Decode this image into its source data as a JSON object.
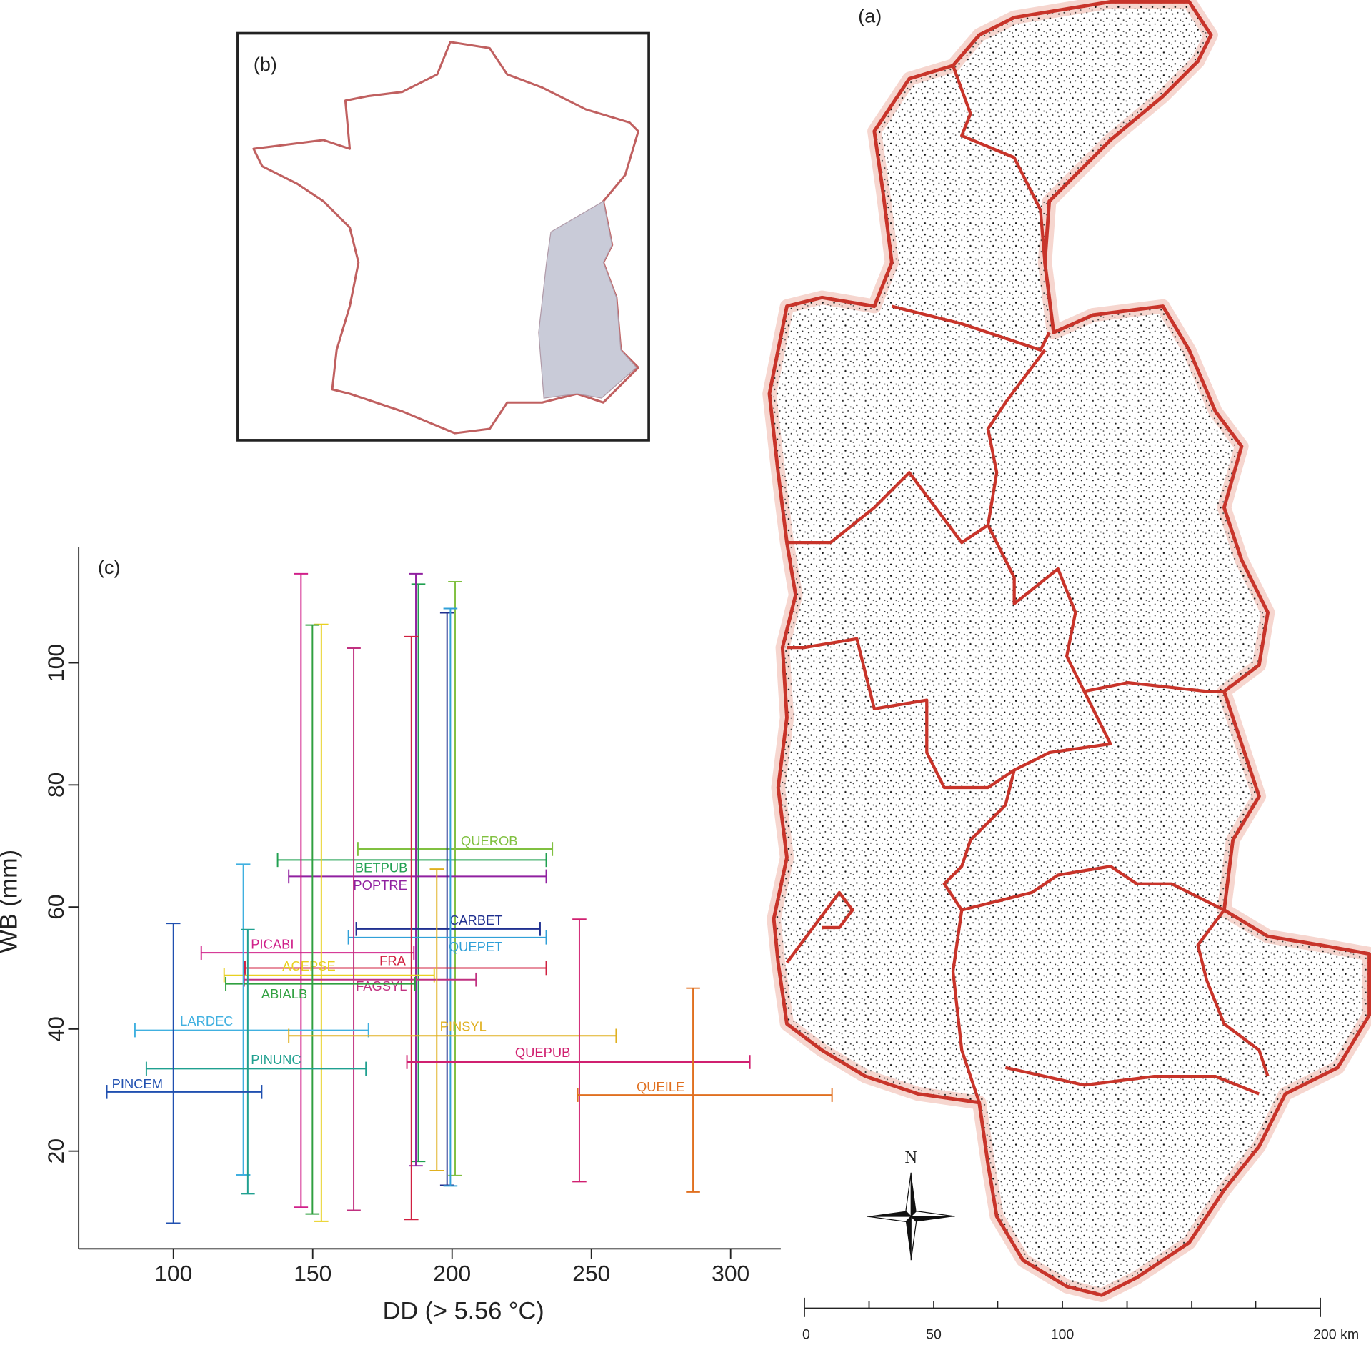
{
  "map_panel": {
    "label": "(a)",
    "north": "N",
    "scale_labels": [
      "0",
      "50",
      "100",
      "200 km"
    ]
  },
  "inset_panel": {
    "label": "(b)"
  },
  "chart_data": {
    "type": "errorbar",
    "panel_label": "(c)",
    "x_label": "DD (> 5.56 °C)",
    "y_label": "WB (mm)",
    "xlim": [
      66,
      318
    ],
    "ylim": [
      4,
      119
    ],
    "xticks": [
      100,
      150,
      200,
      250,
      300
    ],
    "yticks": [
      20,
      40,
      60,
      80,
      100
    ],
    "series": [
      {
        "name": "QUEROB",
        "color": "#80c040",
        "dd": 201.1,
        "dd_range": [
          166.2,
          236.0
        ],
        "wb": 69.5,
        "wb_range": [
          16.0,
          113.3
        ]
      },
      {
        "name": "BETPUB",
        "color": "#20a050",
        "dd": 187.9,
        "dd_range": [
          137.4,
          233.8
        ],
        "wb": 67.7,
        "wb_range": [
          18.3,
          112.9
        ]
      },
      {
        "name": "POPTRE",
        "color": "#9020a0",
        "dd": 187.0,
        "dd_range": [
          141.4,
          233.8
        ],
        "wb": 65.0,
        "wb_range": [
          17.6,
          114.6
        ]
      },
      {
        "name": "CARBET",
        "color": "#203090",
        "dd": 198.2,
        "dd_range": [
          165.6,
          231.6
        ],
        "wb": 56.4,
        "wb_range": [
          14.4,
          108.2
        ]
      },
      {
        "name": "QUEPET",
        "color": "#30a0d8",
        "dd": 199.4,
        "dd_range": [
          162.8,
          233.8
        ],
        "wb": 55.0,
        "wb_range": [
          14.3,
          108.9
        ]
      },
      {
        "name": "PICABI",
        "color": "#d0208a",
        "dd": 145.8,
        "dd_range": [
          110.0,
          186.3
        ],
        "wb": 52.5,
        "wb_range": [
          10.8,
          114.6
        ]
      },
      {
        "name": "FRA",
        "color": "#d02040",
        "dd": 185.4,
        "dd_range": [
          125.7,
          233.8
        ],
        "wb": 50.0,
        "wb_range": [
          8.8,
          104.3
        ]
      },
      {
        "name": "ACEPSE",
        "color": "#e8d020",
        "dd": 153.1,
        "dd_range": [
          118.2,
          193.6
        ],
        "wb": 48.8,
        "wb_range": [
          8.5,
          106.3
        ]
      },
      {
        "name": "FAGSYL",
        "color": "#c03080",
        "dd": 164.7,
        "dd_range": [
          125.4,
          208.6
        ],
        "wb": 48.1,
        "wb_range": [
          10.3,
          102.4
        ]
      },
      {
        "name": "ABIALB",
        "color": "#30a040",
        "dd": 149.9,
        "dd_range": [
          118.8,
          186.7
        ],
        "wb": 47.4,
        "wb_range": [
          9.7,
          106.2
        ]
      },
      {
        "name": "LARDEC",
        "color": "#40b0e0",
        "dd": 125.1,
        "dd_range": [
          86.2,
          170.0
        ],
        "wb": 39.8,
        "wb_range": [
          16.1,
          67.0
        ]
      },
      {
        "name": "PINSYL",
        "color": "#e0b020",
        "dd": 194.5,
        "dd_range": [
          141.4,
          258.9
        ],
        "wb": 38.9,
        "wb_range": [
          16.8,
          66.2
        ]
      },
      {
        "name": "QUEPUB",
        "color": "#d02070",
        "dd": 245.7,
        "dd_range": [
          183.8,
          306.9
        ],
        "wb": 34.6,
        "wb_range": [
          15.0,
          58.0
        ]
      },
      {
        "name": "PINUNC",
        "color": "#20a090",
        "dd": 126.7,
        "dd_range": [
          90.3,
          169.1
        ],
        "wb": 33.5,
        "wb_range": [
          13.0,
          56.3
        ]
      },
      {
        "name": "PINCEM",
        "color": "#2050b0",
        "dd": 100.0,
        "dd_range": [
          76.1,
          131.7
        ],
        "wb": 29.7,
        "wb_range": [
          8.2,
          57.3
        ]
      },
      {
        "name": "QUEILE",
        "color": "#e07020",
        "dd": 286.5,
        "dd_range": [
          245.1,
          336.4
        ],
        "wb": 29.2,
        "wb_range": [
          13.3,
          46.7
        ]
      }
    ]
  }
}
